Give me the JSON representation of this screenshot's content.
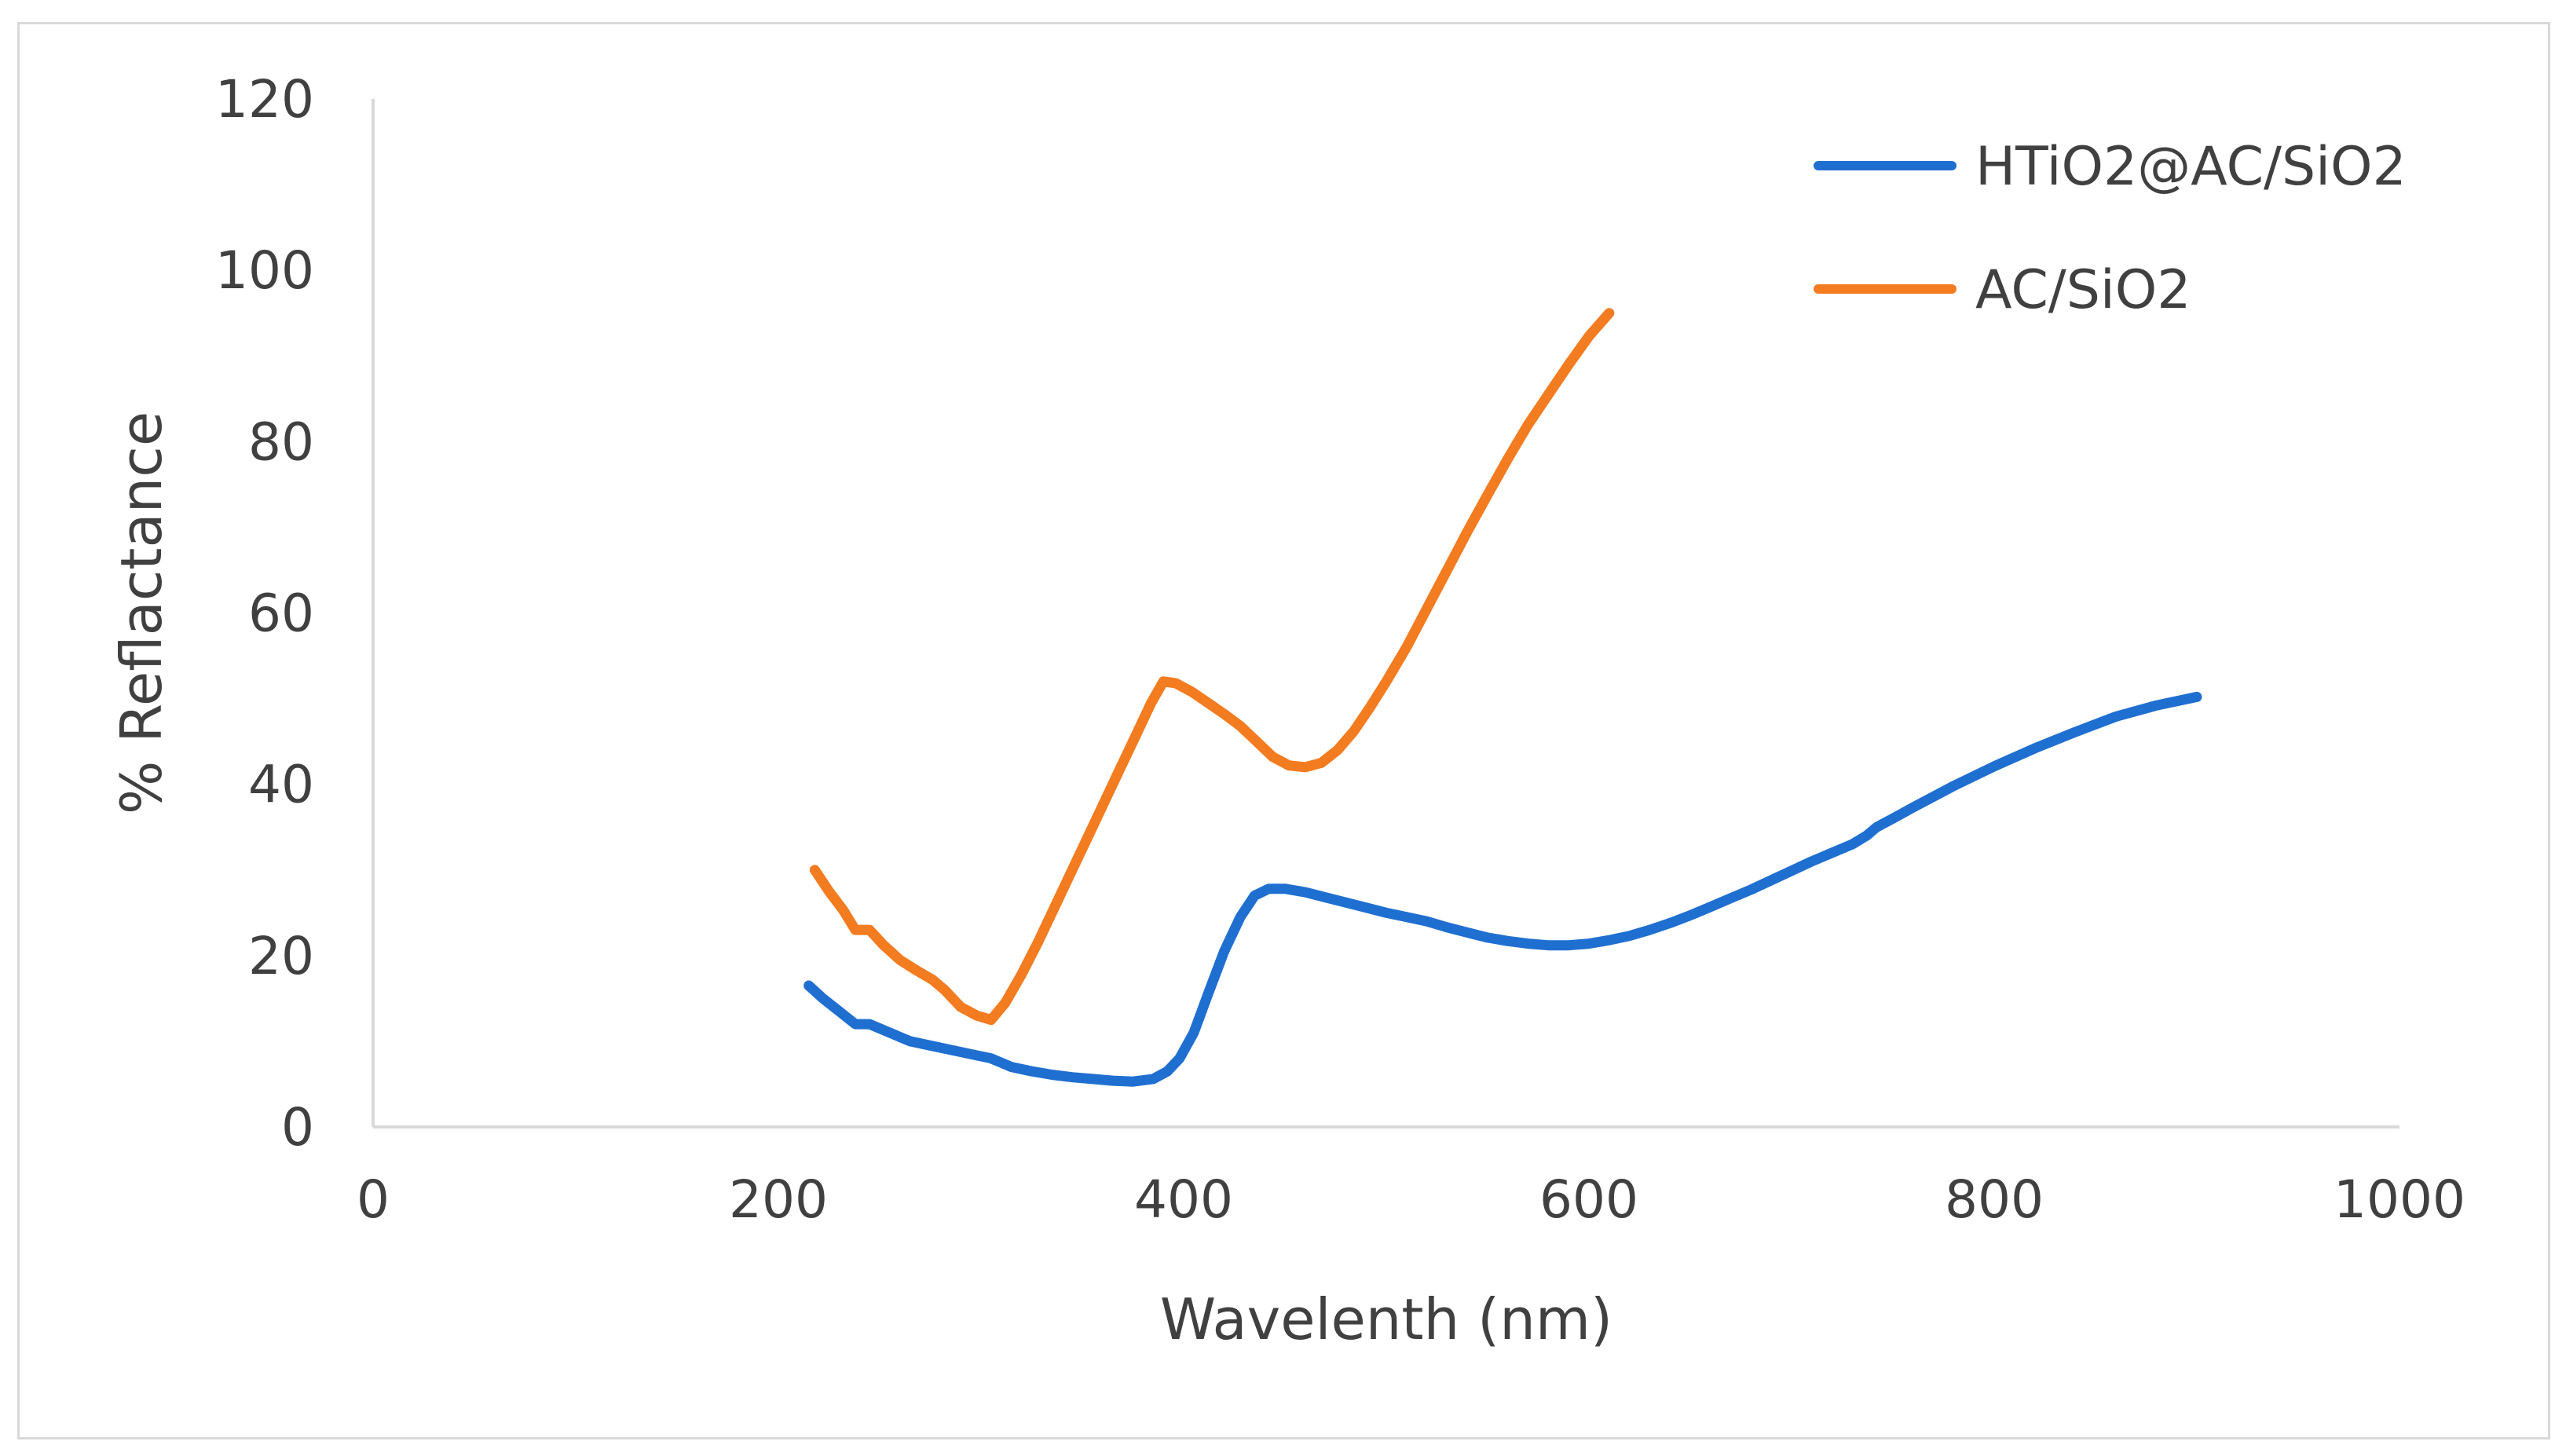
{
  "chart_data": {
    "type": "line",
    "title": "",
    "xlabel": "Wavelenth (nm)",
    "ylabel": "% Reflactance",
    "xlim": [
      0,
      1000
    ],
    "ylim": [
      0,
      120
    ],
    "xticks": [
      0,
      200,
      400,
      600,
      800,
      1000
    ],
    "yticks": [
      0,
      20,
      40,
      60,
      80,
      100,
      120
    ],
    "grid": false,
    "legend_position": "top-right",
    "series": [
      {
        "name": "HTiO2@AC/SiO2",
        "color": "#1f6fd1",
        "x": [
          215,
          222,
          230,
          238,
          245,
          255,
          265,
          275,
          285,
          295,
          305,
          315,
          325,
          335,
          345,
          355,
          365,
          375,
          385,
          392,
          398,
          405,
          412,
          420,
          428,
          435,
          442,
          450,
          460,
          470,
          480,
          490,
          500,
          510,
          520,
          530,
          540,
          550,
          560,
          570,
          580,
          590,
          600,
          610,
          620,
          630,
          640,
          650,
          660,
          670,
          680,
          690,
          700,
          710,
          720,
          730,
          737,
          742,
          750,
          760,
          780,
          800,
          820,
          840,
          860,
          880,
          900
        ],
        "y": [
          16.5,
          15,
          13.5,
          12,
          12,
          11,
          10,
          9.5,
          9,
          8.5,
          8,
          7,
          6.5,
          6.1,
          5.8,
          5.6,
          5.4,
          5.3,
          5.6,
          6.5,
          8,
          11,
          15.5,
          20.5,
          24.5,
          27,
          27.8,
          27.8,
          27.4,
          26.8,
          26.2,
          25.6,
          25,
          24.5,
          24,
          23.3,
          22.7,
          22.1,
          21.7,
          21.4,
          21.2,
          21.2,
          21.4,
          21.8,
          22.3,
          23,
          23.8,
          24.7,
          25.7,
          26.7,
          27.7,
          28.8,
          29.9,
          31,
          32,
          33,
          34,
          35,
          36,
          37.3,
          39.8,
          42.1,
          44.2,
          46.1,
          47.9,
          49.2,
          50.2
        ]
      },
      {
        "name": "AC/SiO2",
        "color": "#f37b20",
        "x": [
          218,
          225,
          232,
          238,
          245,
          252,
          260,
          268,
          276,
          282,
          290,
          298,
          305,
          312,
          320,
          328,
          336,
          344,
          352,
          360,
          368,
          376,
          384,
          390,
          396,
          404,
          412,
          420,
          428,
          436,
          444,
          452,
          460,
          468,
          476,
          484,
          492,
          500,
          510,
          520,
          530,
          540,
          550,
          560,
          570,
          580,
          590,
          600,
          610
        ],
        "y": [
          30,
          27.5,
          25.3,
          23,
          23,
          21.2,
          19.5,
          18.3,
          17.2,
          16,
          14,
          13,
          12.5,
          14.5,
          17.8,
          21.5,
          25.5,
          29.5,
          33.5,
          37.5,
          41.5,
          45.5,
          49.5,
          52,
          51.8,
          50.8,
          49.5,
          48.2,
          46.8,
          45,
          43.2,
          42.2,
          42,
          42.5,
          44,
          46.2,
          49,
          52,
          56,
          60.5,
          65,
          69.5,
          73.8,
          78,
          82,
          85.5,
          89,
          92.3,
          95
        ]
      }
    ]
  }
}
